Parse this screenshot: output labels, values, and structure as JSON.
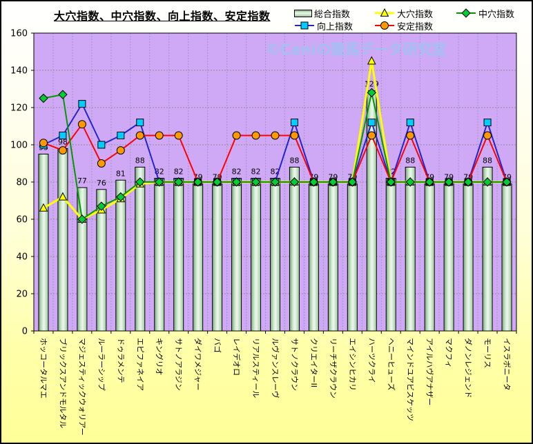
{
  "page": {
    "background_top": "#ffffff",
    "background_bottom": "#ffff99",
    "border_color": "#000000"
  },
  "chart_data": {
    "type": "combo-bar-line",
    "title": "大穴指数、中穴指数、向上指数、安定指数",
    "watermark": "©Caniの競馬データ研究室",
    "watermark_color": "#a2c0f2",
    "plot_bg": "#d0a9f6",
    "grid": true,
    "legend_position": "top",
    "ylim": [
      0,
      160
    ],
    "ytick_step": 20,
    "yticks": [
      0,
      20,
      40,
      60,
      80,
      100,
      120,
      140,
      160
    ],
    "categories": [
      "ホッコータルマエ",
      "ブリックスアンドモルタル",
      "マジェスティックウォリアー",
      "ルーラーシップ",
      "ドゥラメンテ",
      "エピファネイア",
      "キングリオ",
      "サトノアラジン",
      "ダイワメジャー",
      "バゴ",
      "レイデオロ",
      "リアルスティール",
      "ルヴァンスレーヴ",
      "サトノクラウン",
      "クリエイターII",
      "リーチザクラウン",
      "エイシンヒカリ",
      "ハーツクライ",
      "ヘニーヒューズ",
      "マインドユアビスケッツ",
      "アイルハヴアナザー",
      "マクフィ",
      "ダノンレジェンド",
      "モーリス",
      "イスラボニータ"
    ],
    "series": [
      {
        "name": "総合指数",
        "type": "bar",
        "color": "#cde9cd",
        "data_labels": true,
        "values": [
          95,
          98,
          77,
          76,
          81,
          88,
          82,
          82,
          79,
          79,
          82,
          82,
          82,
          88,
          79,
          79,
          79,
          129,
          82,
          88,
          79,
          79,
          79,
          88,
          79
        ]
      },
      {
        "name": "向上指数",
        "type": "line",
        "marker": "square",
        "line_color": "#2323cd",
        "marker_color": "#00ccff",
        "line_width": 2,
        "values": [
          100,
          105,
          122,
          100,
          105,
          112,
          80,
          80,
          80,
          80,
          80,
          80,
          80,
          112,
          80,
          80,
          80,
          112,
          80,
          112,
          80,
          80,
          80,
          112,
          80
        ]
      },
      {
        "name": "大穴指数",
        "type": "line",
        "marker": "triangle",
        "line_color": "#ffff00",
        "marker_color": "#ffff00",
        "line_width": 3,
        "values": [
          66,
          72,
          60,
          65,
          71,
          79,
          80,
          80,
          80,
          80,
          80,
          80,
          80,
          80,
          80,
          80,
          80,
          145,
          80,
          80,
          80,
          80,
          80,
          80,
          80
        ]
      },
      {
        "name": "安定指数",
        "type": "line",
        "marker": "circle",
        "line_color": "#ff0000",
        "marker_color": "#ff9900",
        "line_width": 2,
        "values": [
          101,
          97,
          111,
          90,
          97,
          105,
          105,
          105,
          80,
          80,
          105,
          105,
          105,
          105,
          80,
          80,
          80,
          105,
          80,
          105,
          80,
          80,
          80,
          105,
          80
        ]
      },
      {
        "name": "中穴指数",
        "type": "line",
        "marker": "diamond",
        "line_color": "#009900",
        "marker_color": "#00cc33",
        "line_width": 2,
        "values": [
          125,
          127,
          60,
          67,
          72,
          80,
          80,
          80,
          80,
          80,
          80,
          80,
          80,
          80,
          80,
          80,
          80,
          128,
          80,
          80,
          80,
          80,
          80,
          80,
          80
        ]
      }
    ]
  }
}
